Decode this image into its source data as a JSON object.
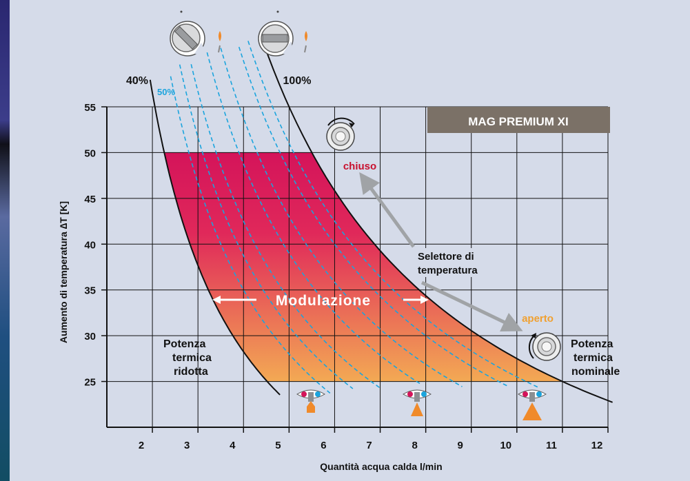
{
  "chart_data": {
    "type": "line",
    "title": "MAG PREMIUM XI",
    "xlabel": "Quantità acqua calda l/min",
    "ylabel": "Aumento di temperatura ∆T [K]",
    "xlim": [
      1,
      12
    ],
    "ylim": [
      20,
      55
    ],
    "x_ticks": [
      2,
      3,
      4,
      5,
      6,
      7,
      8,
      9,
      10,
      11,
      12
    ],
    "y_ticks": [
      25,
      30,
      35,
      40,
      45,
      50,
      55
    ],
    "grid": true,
    "series": [
      {
        "name": "40%",
        "role": "boundary",
        "k": 113,
        "x_range": [
          1.95,
          4.8
        ]
      },
      {
        "name": "50%",
        "role": "dashed",
        "k": 140,
        "x_range": [
          2.4,
          5.9
        ]
      },
      {
        "role": "dashed",
        "k": 155,
        "x_range": [
          2.6,
          6.4
        ]
      },
      {
        "role": "dashed",
        "k": 170,
        "x_range": [
          2.85,
          7.0
        ]
      },
      {
        "role": "dashed",
        "k": 195,
        "x_range": [
          3.2,
          7.9
        ]
      },
      {
        "role": "dashed",
        "k": 215,
        "x_range": [
          3.5,
          8.8
        ]
      },
      {
        "role": "dashed",
        "k": 240,
        "x_range": [
          3.9,
          9.8
        ]
      },
      {
        "role": "dashed",
        "k": 255,
        "x_range": [
          4.1,
          10.5
        ]
      },
      {
        "name": "100%",
        "role": "boundary",
        "k": 275,
        "x_range": [
          4.4,
          12.1
        ]
      }
    ],
    "region": {
      "ymin": 25,
      "ymax": 50,
      "k_low": 113,
      "k_high": 275
    },
    "colors": {
      "top": "#d4145a",
      "bottom": "#f3a954",
      "dashed": "#1ba4dd",
      "label_50": "#1ba4dd",
      "chiuso": "#c8102e",
      "aperto": "#f0a030",
      "arrow": "#a0a3a6",
      "title_bg": "#7b7167"
    }
  },
  "labels": {
    "pct40": "40%",
    "pct50": "50%",
    "pct100": "100%",
    "chiuso": "chiuso",
    "aperto": "aperto",
    "selector_line1": "Selettore di",
    "selector_line2": "temperatura",
    "modulazione": "Modulazione",
    "ridotta1": "Potenza",
    "ridotta2": "termica",
    "ridotta3": "ridotta",
    "nominale1": "Potenza",
    "nominale2": "termica",
    "nominale3": "nominale"
  },
  "icons": [
    "knob-partial-icon",
    "knob-full-icon",
    "flame-icon",
    "rotate-knob-icon",
    "tap-icon",
    "small-flame-icon"
  ]
}
